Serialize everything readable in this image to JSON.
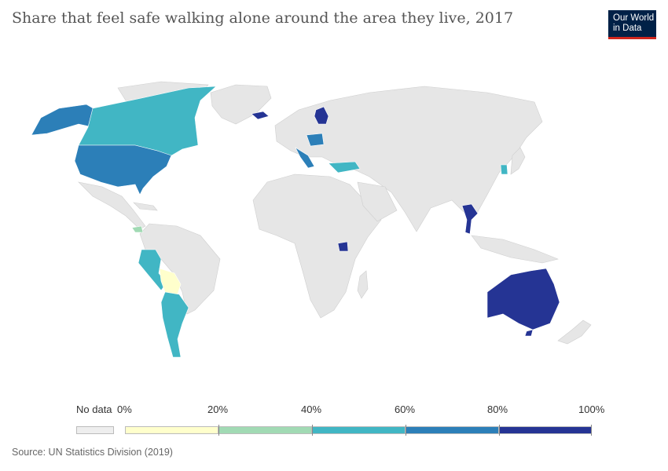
{
  "title": "Share that feel safe walking alone around the area they live, 2017",
  "logo": {
    "line1": "Our World",
    "line2": "in Data"
  },
  "legend": {
    "no_data_label": "No data",
    "no_data_color": "#eeeeee",
    "ticks": [
      "0%",
      "20%",
      "40%",
      "60%",
      "80%",
      "100%"
    ],
    "bins": [
      {
        "range": "0-20%",
        "color": "#ffffcc"
      },
      {
        "range": "20-40%",
        "color": "#a1dab4"
      },
      {
        "range": "40-60%",
        "color": "#41b6c4"
      },
      {
        "range": "60-80%",
        "color": "#2c7fb8"
      },
      {
        "range": "80-100%",
        "color": "#253494"
      }
    ]
  },
  "countries_with_data": [
    {
      "region": "Canada",
      "bin": "40-60%"
    },
    {
      "region": "Alaska (United States)",
      "bin": "60-80%"
    },
    {
      "region": "United States",
      "bin": "60-80%"
    },
    {
      "region": "Peru",
      "bin": "40-60%"
    },
    {
      "region": "Bolivia",
      "bin": "0-20%"
    },
    {
      "region": "Argentina",
      "bin": "40-60%"
    },
    {
      "region": "Nicaragua",
      "bin": "20-40%"
    },
    {
      "region": "Iceland",
      "bin": "80-100%"
    },
    {
      "region": "Finland",
      "bin": "80-100%"
    },
    {
      "region": "Poland",
      "bin": "60-80%"
    },
    {
      "region": "Italy",
      "bin": "60-80%"
    },
    {
      "region": "Turkey",
      "bin": "40-60%"
    },
    {
      "region": "South Korea",
      "bin": "40-60%"
    },
    {
      "region": "Thailand",
      "bin": "80-100%"
    },
    {
      "region": "Uganda",
      "bin": "80-100%"
    },
    {
      "region": "Australia",
      "bin": "80-100%"
    }
  ],
  "source": "Source: UN Statistics Division (2019)"
}
